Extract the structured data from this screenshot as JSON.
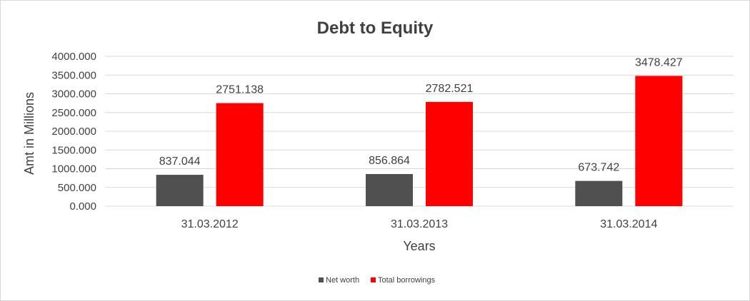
{
  "chart_data": {
    "type": "bar",
    "title": "Debt to Equity",
    "xlabel": "Years",
    "ylabel": "Amt in Millions",
    "categories": [
      "31.03.2012",
      "31.03.2013",
      "31.03.2014"
    ],
    "series": [
      {
        "name": "Net worth",
        "values": [
          837.044,
          856.864,
          673.742
        ],
        "color": "#505050"
      },
      {
        "name": "Total borrowings",
        "values": [
          2751.138,
          2782.521,
          3478.427
        ],
        "color": "#ff0000"
      }
    ],
    "value_labels": [
      [
        "837.044",
        "856.864",
        "673.742"
      ],
      [
        "2751.138",
        "2782.521",
        "3478.427"
      ]
    ],
    "ylim": [
      0,
      4000
    ],
    "yticks": [
      "0.000",
      "500.000",
      "1000.000",
      "1500.000",
      "2000.000",
      "2500.000",
      "3000.000",
      "3500.000",
      "4000.000"
    ],
    "grid": true,
    "legend_position": "bottom"
  }
}
